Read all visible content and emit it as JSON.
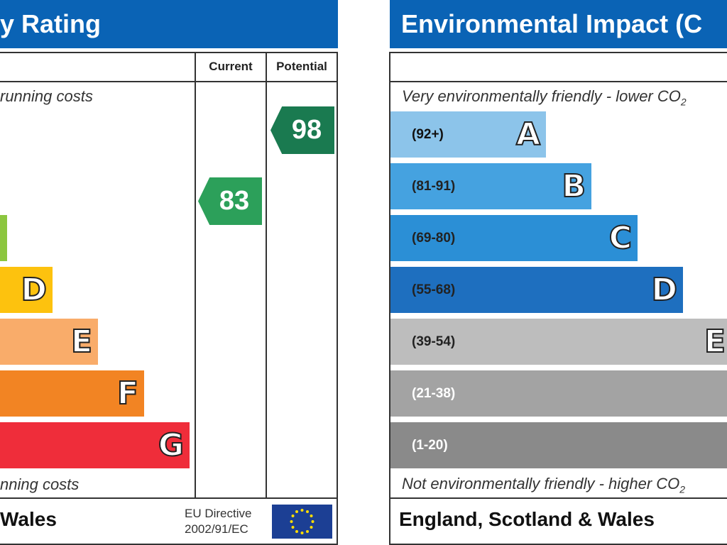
{
  "left_panel": {
    "title": "y Rating",
    "column_headers": [
      "Current",
      "Potential"
    ],
    "top_note": "running costs",
    "bottom_note": "nning costs",
    "bands": [
      {
        "letter": "D"
      },
      {
        "letter": "E"
      },
      {
        "letter": "F"
      },
      {
        "letter": "G"
      }
    ],
    "current": 83,
    "potential": 98,
    "footer": {
      "region": "Wales",
      "directive": [
        "EU Directive",
        "2002/91/EC"
      ]
    }
  },
  "right_panel": {
    "title": "Environmental Impact (C",
    "top_note": "Very environmentally friendly - lower CO",
    "top_note_sub": "2",
    "bottom_note": "Not environmentally friendly - higher CO",
    "bottom_note_sub": "2",
    "bands": [
      {
        "range": "(92+)",
        "letter": "A"
      },
      {
        "range": "(81-91)",
        "letter": "B"
      },
      {
        "range": "(69-80)",
        "letter": "C"
      },
      {
        "range": "(55-68)",
        "letter": "D"
      },
      {
        "range": "(39-54)",
        "letter": "E"
      },
      {
        "range": "(21-38)"
      },
      {
        "range": "(1-20)"
      }
    ],
    "footer": {
      "region": "England, Scotland & Wales"
    }
  }
}
